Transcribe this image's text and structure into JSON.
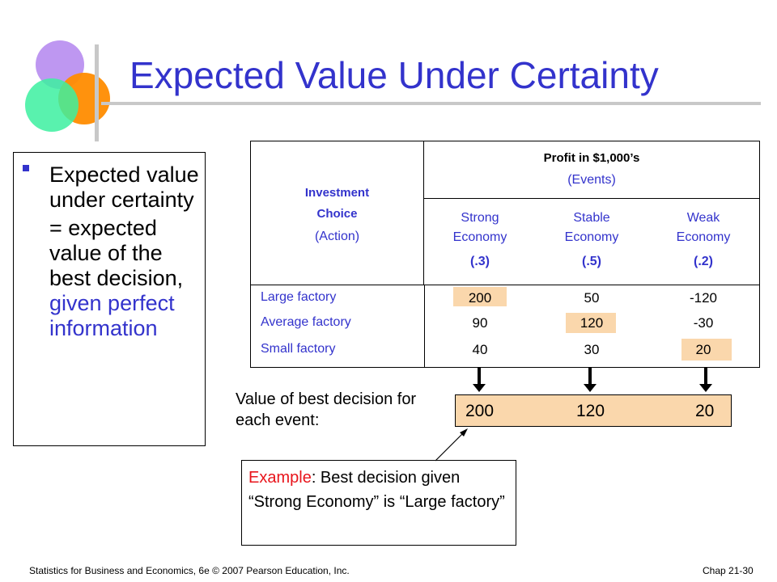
{
  "title": "Expected Value Under Certainty",
  "bullet": {
    "line1": "Expected value under certainty",
    "line2_prefix": "= expected value of the best decision,",
    "line2_highlight": "given perfect information"
  },
  "table": {
    "investment_header": "Investment Choice",
    "action_label": "(Action)",
    "profit_header": "Profit in $1,000’s",
    "events_label": "(Events)",
    "events": [
      {
        "name": "Strong Economy",
        "prob": "(.3)"
      },
      {
        "name": "Stable Economy",
        "prob": "(.5)"
      },
      {
        "name": "Weak Economy",
        "prob": "(.2)"
      }
    ],
    "rows": [
      {
        "action": "Large factory",
        "values": [
          "200",
          "50",
          "-120"
        ]
      },
      {
        "action": "Average factory",
        "values": [
          "90",
          "120",
          "-30"
        ]
      },
      {
        "action": "Small factory",
        "values": [
          "40",
          "30",
          "20"
        ]
      }
    ]
  },
  "best": {
    "label": "Value of best decision for each event:",
    "values": [
      "200",
      "120",
      "20"
    ]
  },
  "example": {
    "prefix": "Example",
    "text": ": Best decision given “Strong Economy” is “Large factory”"
  },
  "footer": {
    "left": "Statistics for Business and Economics, 6e © 2007 Pearson Education, Inc.",
    "right": "Chap 21-30"
  },
  "colors": {
    "title": "#3333cc",
    "highlight": "#fad7ac",
    "example_red": "#e8141b"
  }
}
